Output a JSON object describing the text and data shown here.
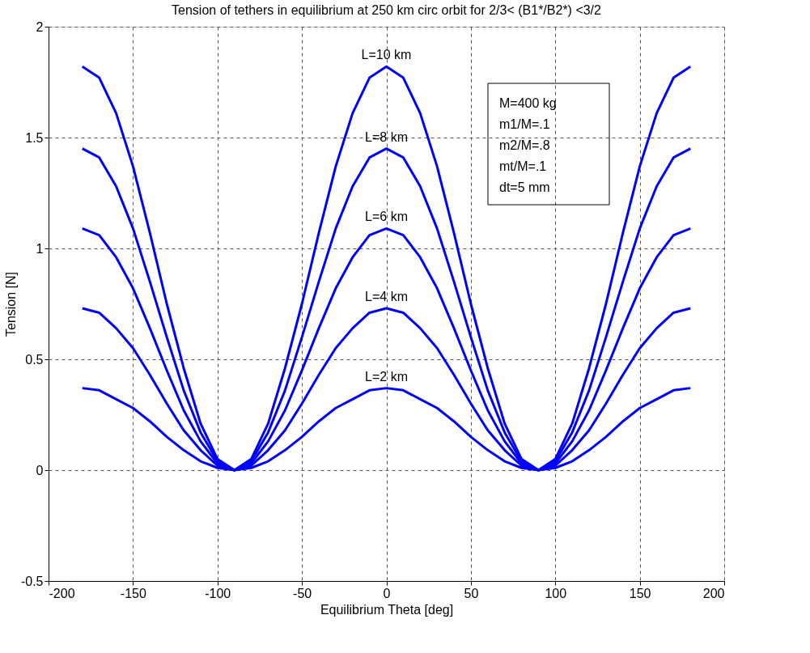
{
  "chart_data": {
    "type": "line",
    "title": "Tension of tethers in equilibrium at 250 km circ orbit for 2/3< (B1*/B2*) <3/2",
    "xlabel": "Equilibrium Theta [deg]",
    "ylabel": "Tension [N]",
    "x": [
      -180,
      -170,
      -160,
      -150,
      -140,
      -130,
      -120,
      -110,
      -100,
      -90,
      -80,
      -70,
      -60,
      -50,
      -40,
      -30,
      -20,
      -10,
      0,
      10,
      20,
      30,
      40,
      50,
      60,
      70,
      80,
      90,
      100,
      110,
      120,
      130,
      140,
      150,
      160,
      170,
      180
    ],
    "series": [
      {
        "name": "L=10 km",
        "color": "#0000ff",
        "values": [
          1.82,
          1.77,
          1.61,
          1.37,
          1.07,
          0.75,
          0.46,
          0.21,
          0.05,
          0,
          0.05,
          0.21,
          0.46,
          0.75,
          1.07,
          1.37,
          1.61,
          1.77,
          1.82,
          1.77,
          1.61,
          1.37,
          1.07,
          0.75,
          0.46,
          0.21,
          0.05,
          0,
          0.05,
          0.21,
          0.46,
          0.75,
          1.07,
          1.37,
          1.61,
          1.77,
          1.82
        ]
      },
      {
        "name": "L=8 km",
        "color": "#0000ff",
        "values": [
          1.45,
          1.41,
          1.28,
          1.09,
          0.85,
          0.6,
          0.36,
          0.17,
          0.04,
          0,
          0.04,
          0.17,
          0.36,
          0.6,
          0.85,
          1.09,
          1.28,
          1.41,
          1.45,
          1.41,
          1.28,
          1.09,
          0.85,
          0.6,
          0.36,
          0.17,
          0.04,
          0,
          0.04,
          0.17,
          0.36,
          0.6,
          0.85,
          1.09,
          1.28,
          1.41,
          1.45
        ]
      },
      {
        "name": "L=6 km",
        "color": "#0000ff",
        "values": [
          1.09,
          1.06,
          0.96,
          0.82,
          0.64,
          0.45,
          0.27,
          0.13,
          0.03,
          0,
          0.03,
          0.13,
          0.27,
          0.45,
          0.64,
          0.82,
          0.96,
          1.06,
          1.09,
          1.06,
          0.96,
          0.82,
          0.64,
          0.45,
          0.27,
          0.13,
          0.03,
          0,
          0.03,
          0.13,
          0.27,
          0.45,
          0.64,
          0.82,
          0.96,
          1.06,
          1.09
        ]
      },
      {
        "name": "L=4 km",
        "color": "#0000ff",
        "values": [
          0.73,
          0.71,
          0.64,
          0.55,
          0.43,
          0.3,
          0.18,
          0.09,
          0.02,
          0,
          0.02,
          0.09,
          0.18,
          0.3,
          0.43,
          0.55,
          0.64,
          0.71,
          0.73,
          0.71,
          0.64,
          0.55,
          0.43,
          0.3,
          0.18,
          0.09,
          0.02,
          0,
          0.02,
          0.09,
          0.18,
          0.3,
          0.43,
          0.55,
          0.64,
          0.71,
          0.73
        ]
      },
      {
        "name": "L=2 km",
        "color": "#0000ff",
        "values": [
          0.37,
          0.36,
          0.32,
          0.28,
          0.22,
          0.15,
          0.09,
          0.04,
          0.01,
          0,
          0.01,
          0.04,
          0.09,
          0.15,
          0.22,
          0.28,
          0.32,
          0.36,
          0.37,
          0.36,
          0.32,
          0.28,
          0.22,
          0.15,
          0.09,
          0.04,
          0.01,
          0,
          0.01,
          0.04,
          0.09,
          0.15,
          0.22,
          0.28,
          0.32,
          0.36,
          0.37
        ]
      }
    ],
    "xlim": [
      -200,
      200
    ],
    "ylim": [
      -0.5,
      2
    ],
    "xticks": [
      -200,
      -150,
      -100,
      -50,
      0,
      50,
      100,
      150,
      200
    ],
    "yticks": [
      -0.5,
      0,
      0.5,
      1,
      1.5,
      2
    ],
    "grid": true,
    "legend": false,
    "marker": "none",
    "line_style": "solid",
    "annotations": [
      "M=400 kg",
      "m1/M=.1",
      "m2/M=.8",
      "mt/M=.1",
      "dt=5 mm"
    ]
  }
}
